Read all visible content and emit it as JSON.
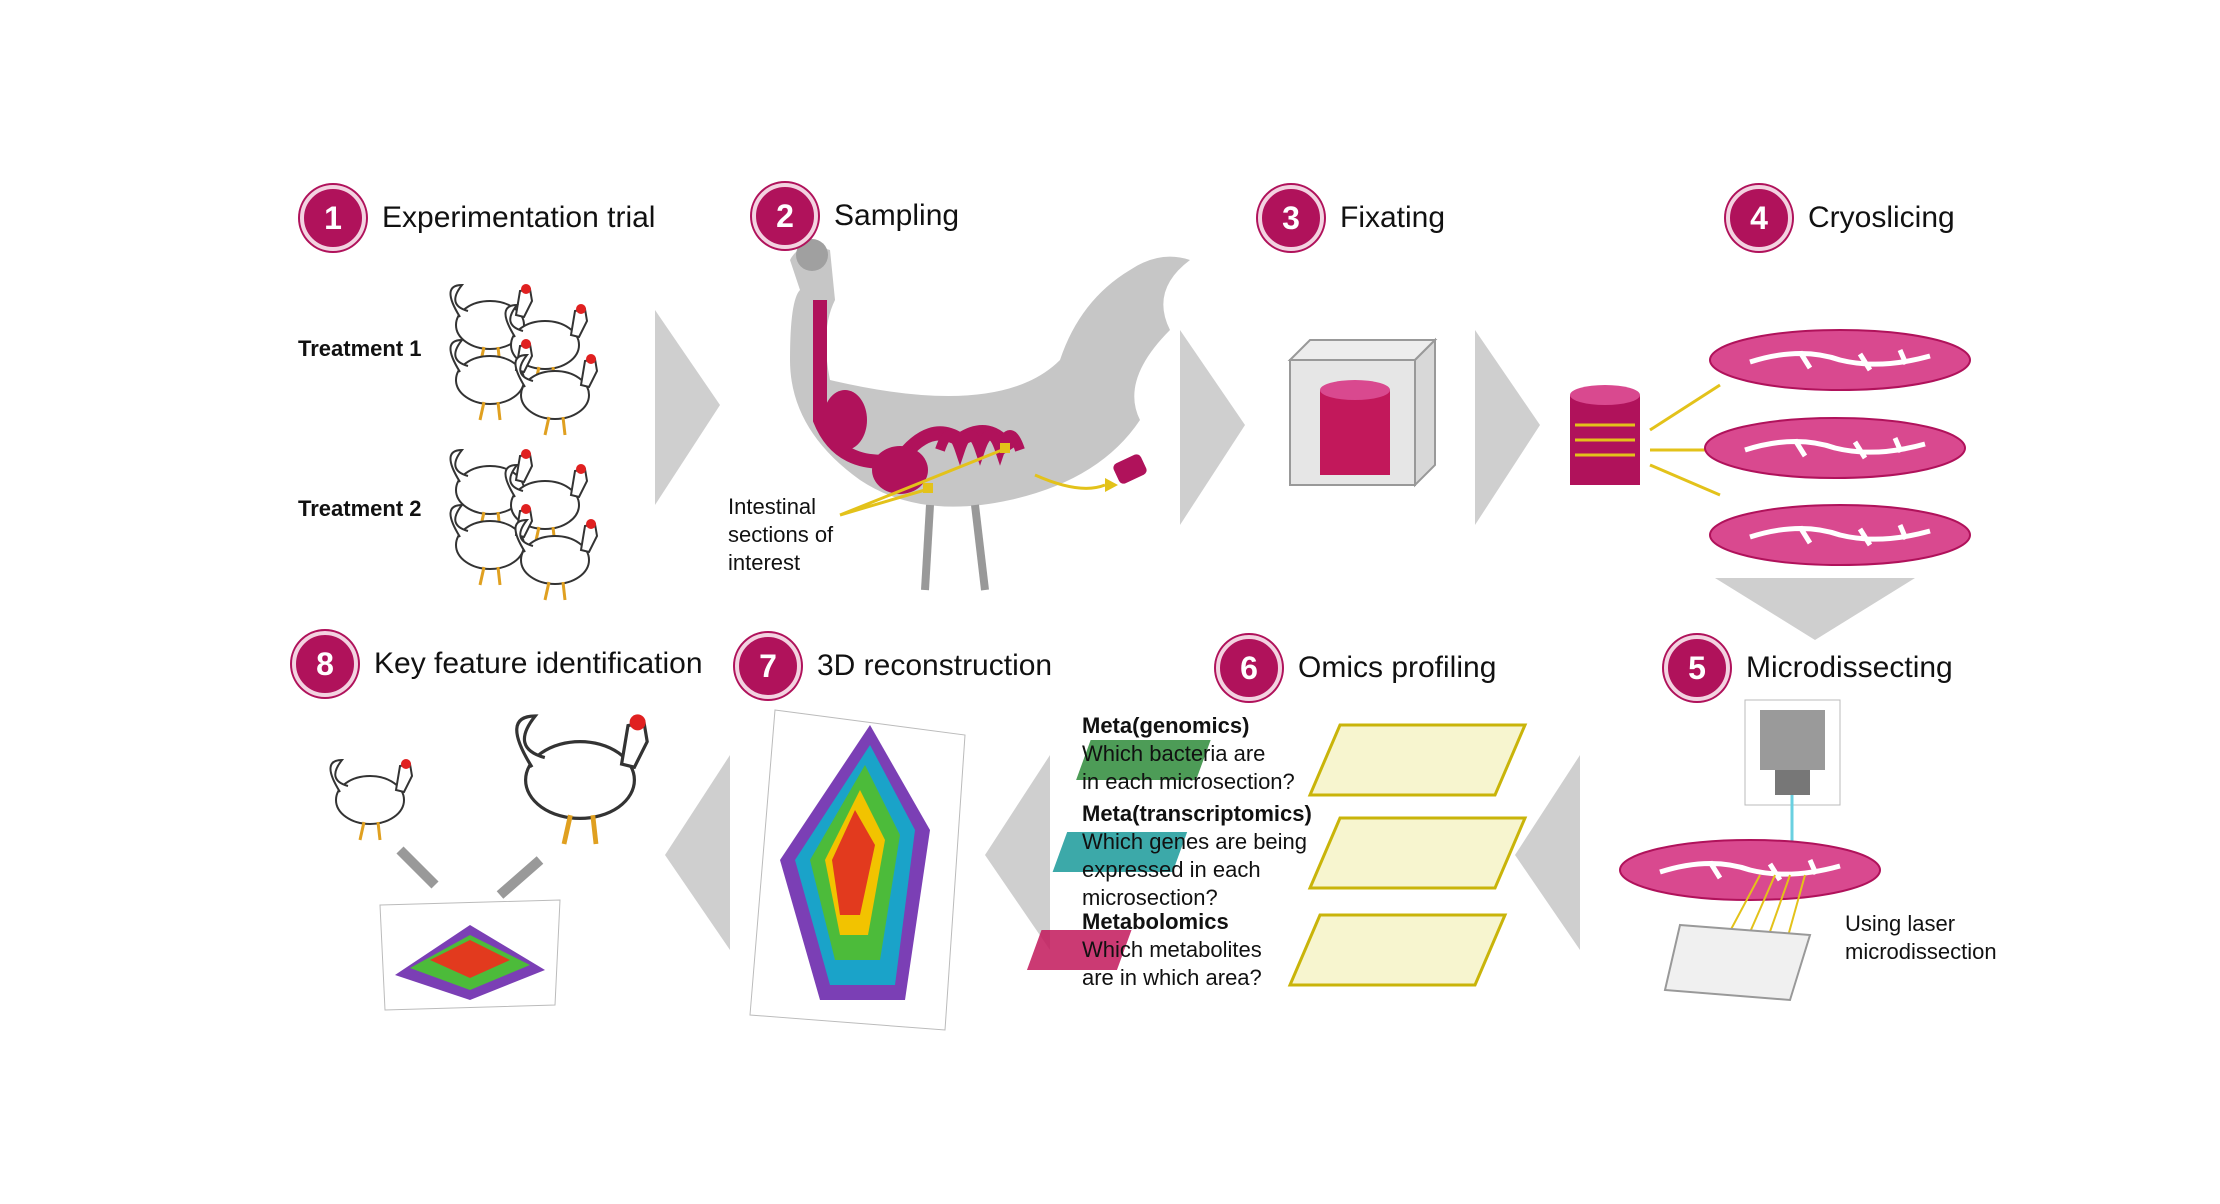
{
  "steps": [
    {
      "num": "1",
      "title": "Experimentation trial"
    },
    {
      "num": "2",
      "title": "Sampling"
    },
    {
      "num": "3",
      "title": "Fixating"
    },
    {
      "num": "4",
      "title": "Cryoslicing"
    },
    {
      "num": "5",
      "title": "Microdissecting"
    },
    {
      "num": "6",
      "title": "Omics profiling"
    },
    {
      "num": "7",
      "title": "3D reconstruction"
    },
    {
      "num": "8",
      "title": "Key feature identification"
    }
  ],
  "treatments": [
    "Treatment 1",
    "Treatment 2"
  ],
  "sampling_label": [
    "Intestinal",
    "sections of",
    "interest"
  ],
  "microdissection_label": [
    "Using laser",
    "microdissection"
  ],
  "omics": [
    {
      "name": "Meta(genomics)",
      "question": [
        "Which bacteria are",
        "in each microsection?"
      ]
    },
    {
      "name": "Meta(transcriptomics)",
      "question": [
        "Which genes are being",
        "expressed in each",
        "microsection?"
      ]
    },
    {
      "name": "Metabolomics",
      "question": [
        "Which metabolites",
        "are in which area?"
      ]
    }
  ],
  "colors": {
    "accent": "#b0125b",
    "tissue": "#d9498f",
    "arrow_grey": "#cfcfcf",
    "yellow": "#e3c21a",
    "genomics_green": "#2e8b3a",
    "transcriptomics_teal": "#1a9a9a",
    "metabolomics_pink": "#c2185b"
  },
  "icons": [
    "chicken-icon",
    "rooster-icon",
    "tissue-block-icon",
    "tissue-slice-icon",
    "microscope-icon",
    "well-plate-icon",
    "data-grid-icon",
    "3d-point-cloud-icon"
  ]
}
